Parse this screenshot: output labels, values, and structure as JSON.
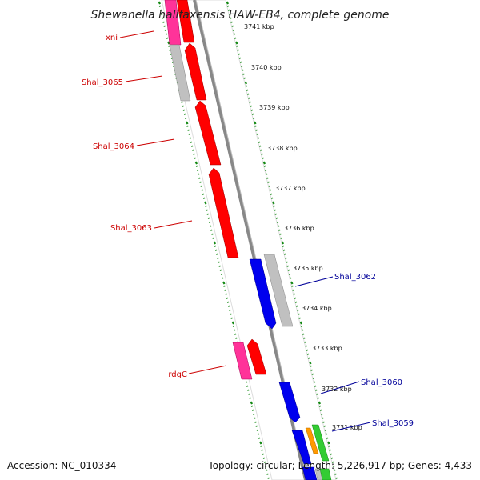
{
  "title": "Shewanella halifaxensis HAW-EB4, complete genome",
  "footer": {
    "accession": "Accession: NC_010334",
    "summary": "Topology: circular; Length: 5,226,917 bp; Genes: 4,433"
  },
  "colors": {
    "forward_gene": "#ff0000",
    "reverse_gene": "#0000ee",
    "pseudo_gene": "#c0c0c0",
    "rna_gene": "#ff3399",
    "orange_gene": "#ff9900",
    "green_gene": "#33cc33",
    "backbone": "#888888",
    "tick": "#118811",
    "label_forward": "#cc0000",
    "label_reverse": "#000099"
  },
  "kbp_ticks": [
    "3741 kbp",
    "3740 kbp",
    "3739 kbp",
    "3738 kbp",
    "3737 kbp",
    "3736 kbp",
    "3735 kbp",
    "3734 kbp",
    "3733 kbp",
    "3732 kbp",
    "3731 kbp"
  ],
  "gene_labels": [
    {
      "name": "xni",
      "strand": "forward"
    },
    {
      "name": "Shal_3065",
      "strand": "forward"
    },
    {
      "name": "Shal_3064",
      "strand": "forward"
    },
    {
      "name": "Shal_3063",
      "strand": "forward"
    },
    {
      "name": "rdgC",
      "strand": "forward"
    },
    {
      "name": "Shal_3062",
      "strand": "reverse"
    },
    {
      "name": "Shal_3060",
      "strand": "reverse"
    },
    {
      "name": "Shal_3059",
      "strand": "reverse"
    }
  ]
}
